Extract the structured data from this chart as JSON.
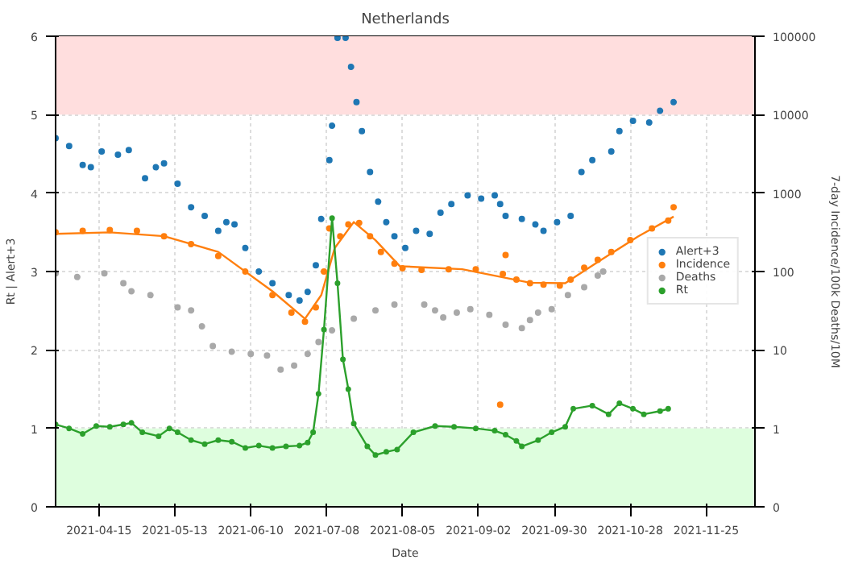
{
  "chart_data": {
    "type": "scatter",
    "title": "Netherlands",
    "xlabel": "Date",
    "ylabel": "Rt | Alert+3",
    "y2label": "7-day Incidence/100k Deaths/10M",
    "xlim": [
      "2021-03-30",
      "2021-12-13"
    ],
    "xticks": [
      "2021-04-15",
      "2021-05-13",
      "2021-06-10",
      "2021-07-08",
      "2021-08-05",
      "2021-09-02",
      "2021-09-30",
      "2021-10-28",
      "2021-11-25"
    ],
    "ylim": [
      0,
      6
    ],
    "yticks": [
      0,
      1,
      2,
      3,
      4,
      5,
      6
    ],
    "y2lim": [
      0,
      100000
    ],
    "y2ticks": [
      0,
      1,
      10,
      100,
      1000,
      10000,
      100000
    ],
    "log": "y2",
    "grid": true,
    "legend": "right",
    "marker": "circle",
    "bands": [
      {
        "axis": "y",
        "from": 5,
        "to": 6,
        "color": "#ffdede"
      },
      {
        "axis": "y",
        "from": 0,
        "to": 1,
        "color": "#defede"
      }
    ],
    "series": [
      {
        "name": "Alert+3",
        "color": "#1f77b4",
        "x": [
          "2021-03-30",
          "2021-04-04",
          "2021-04-09",
          "2021-04-12",
          "2021-04-16",
          "2021-04-22",
          "2021-04-26",
          "2021-05-02",
          "2021-05-06",
          "2021-05-09",
          "2021-05-14",
          "2021-05-19",
          "2021-05-24",
          "2021-05-29",
          "2021-06-01",
          "2021-06-04",
          "2021-06-08",
          "2021-06-13",
          "2021-06-18",
          "2021-06-24",
          "2021-06-28",
          "2021-07-01",
          "2021-07-04",
          "2021-07-06",
          "2021-07-09",
          "2021-07-10",
          "2021-07-12",
          "2021-07-15",
          "2021-07-17",
          "2021-07-19",
          "2021-07-21",
          "2021-07-24",
          "2021-07-27",
          "2021-07-30",
          "2021-08-02",
          "2021-08-06",
          "2021-08-10",
          "2021-08-15",
          "2021-08-19",
          "2021-08-23",
          "2021-08-29",
          "2021-09-03",
          "2021-09-08",
          "2021-09-10",
          "2021-09-12",
          "2021-09-18",
          "2021-09-23",
          "2021-09-26",
          "2021-10-01",
          "2021-10-06",
          "2021-10-10",
          "2021-10-14",
          "2021-10-21",
          "2021-10-24",
          "2021-10-29",
          "2021-11-04",
          "2021-11-08",
          "2021-11-13"
        ],
        "values": [
          4.7,
          4.6,
          4.36,
          4.33,
          4.53,
          4.49,
          4.55,
          4.19,
          4.33,
          4.38,
          4.12,
          3.82,
          3.71,
          3.52,
          3.63,
          3.6,
          3.3,
          3.0,
          2.85,
          2.7,
          2.63,
          2.74,
          3.08,
          3.67,
          4.42,
          4.86,
          5.98,
          5.98,
          5.61,
          5.16,
          4.79,
          4.27,
          3.89,
          3.63,
          3.45,
          3.3,
          3.52,
          3.48,
          3.75,
          3.86,
          3.97,
          3.93,
          3.97,
          3.86,
          3.71,
          3.67,
          3.6,
          3.52,
          3.63,
          3.71,
          4.27,
          4.42,
          4.53,
          4.79,
          4.92,
          4.9,
          5.05,
          5.16
        ]
      },
      {
        "name": "Incidence",
        "axis": "y2",
        "color": "#ff7f0e",
        "x": [
          "2021-03-30",
          "2021-04-09",
          "2021-04-19",
          "2021-04-29",
          "2021-05-09",
          "2021-05-19",
          "2021-05-29",
          "2021-06-08",
          "2021-06-18",
          "2021-06-25",
          "2021-06-30",
          "2021-07-04",
          "2021-07-07",
          "2021-07-09",
          "2021-07-13",
          "2021-07-16",
          "2021-07-20",
          "2021-07-24",
          "2021-07-28",
          "2021-08-02",
          "2021-08-05",
          "2021-08-12",
          "2021-08-22",
          "2021-09-01",
          "2021-09-10",
          "2021-09-11",
          "2021-09-12",
          "2021-09-16",
          "2021-09-21",
          "2021-09-26",
          "2021-10-02",
          "2021-10-06",
          "2021-10-11",
          "2021-10-16",
          "2021-10-21",
          "2021-10-28",
          "2021-11-05",
          "2021-11-11",
          "2021-11-13"
        ],
        "values": [
          316,
          331,
          339,
          331,
          282,
          224,
          158,
          100,
          50,
          30,
          23,
          35,
          100,
          355,
          282,
          398,
          417,
          282,
          178,
          126,
          110,
          105,
          107,
          107,
          2.0,
          93,
          162,
          79,
          71,
          68,
          66,
          79,
          112,
          141,
          178,
          251,
          355,
          447,
          661
        ]
      },
      {
        "type": "line",
        "axis": "y2",
        "color": "#ff7f0e",
        "marker": "none",
        "x": [
          "2021-03-30",
          "2021-04-19",
          "2021-05-09",
          "2021-05-29",
          "2021-06-18",
          "2021-06-30",
          "2021-07-06",
          "2021-07-11",
          "2021-07-18",
          "2021-07-26",
          "2021-08-04",
          "2021-08-27",
          "2021-09-21",
          "2021-10-04",
          "2021-10-16",
          "2021-10-31",
          "2021-11-13"
        ],
        "values": [
          302,
          316,
          282,
          178,
          56,
          25,
          50,
          200,
          427,
          251,
          117,
          107,
          72,
          71,
          132,
          282,
          501
        ]
      },
      {
        "name": "Deaths",
        "axis": "y2",
        "color": "#a9a9a9",
        "x": [
          "2021-03-30",
          "2021-04-07",
          "2021-04-17",
          "2021-04-24",
          "2021-04-27",
          "2021-05-04",
          "2021-05-14",
          "2021-05-19",
          "2021-05-23",
          "2021-05-27",
          "2021-06-03",
          "2021-06-10",
          "2021-06-16",
          "2021-06-21",
          "2021-06-26",
          "2021-07-01",
          "2021-07-05",
          "2021-07-10",
          "2021-07-18",
          "2021-07-26",
          "2021-08-02",
          "2021-08-13",
          "2021-08-17",
          "2021-08-20",
          "2021-08-25",
          "2021-08-30",
          "2021-09-06",
          "2021-09-12",
          "2021-09-18",
          "2021-09-21",
          "2021-09-24",
          "2021-09-29",
          "2021-10-05",
          "2021-10-11",
          "2021-10-16",
          "2021-10-18"
        ],
        "values": [
          95,
          85,
          95,
          71,
          56,
          50,
          35,
          32,
          20,
          11.2,
          9.5,
          8.9,
          8.5,
          5.6,
          6.3,
          8.9,
          12.6,
          17.8,
          25,
          32,
          38,
          38,
          32,
          26,
          30,
          33,
          28,
          21,
          19,
          24,
          30,
          33,
          50,
          63,
          89,
          100
        ]
      },
      {
        "name": "Rt",
        "type": "line",
        "color": "#2ca02c",
        "x": [
          "2021-03-30",
          "2021-04-04",
          "2021-04-09",
          "2021-04-14",
          "2021-04-19",
          "2021-04-24",
          "2021-04-27",
          "2021-05-01",
          "2021-05-07",
          "2021-05-11",
          "2021-05-14",
          "2021-05-19",
          "2021-05-24",
          "2021-05-29",
          "2021-06-03",
          "2021-06-08",
          "2021-06-13",
          "2021-06-18",
          "2021-06-23",
          "2021-06-28",
          "2021-07-01",
          "2021-07-03",
          "2021-07-05",
          "2021-07-07",
          "2021-07-10",
          "2021-07-12",
          "2021-07-14",
          "2021-07-16",
          "2021-07-18",
          "2021-07-23",
          "2021-07-26",
          "2021-07-30",
          "2021-08-03",
          "2021-08-09",
          "2021-08-17",
          "2021-08-24",
          "2021-09-01",
          "2021-09-08",
          "2021-09-12",
          "2021-09-16",
          "2021-09-18",
          "2021-09-24",
          "2021-09-29",
          "2021-10-04",
          "2021-10-07",
          "2021-10-14",
          "2021-10-20",
          "2021-10-24",
          "2021-10-29",
          "2021-11-02",
          "2021-11-08",
          "2021-11-11"
        ],
        "values": [
          1.05,
          1.0,
          0.93,
          1.03,
          1.02,
          1.05,
          1.07,
          0.95,
          0.9,
          1.0,
          0.95,
          0.85,
          0.8,
          0.85,
          0.83,
          0.75,
          0.78,
          0.75,
          0.77,
          0.78,
          0.82,
          0.95,
          1.44,
          2.26,
          3.68,
          2.85,
          1.88,
          1.5,
          1.06,
          0.77,
          0.66,
          0.7,
          0.73,
          0.95,
          1.03,
          1.02,
          1.0,
          0.97,
          0.92,
          0.84,
          0.77,
          0.85,
          0.95,
          1.02,
          1.25,
          1.29,
          1.18,
          1.32,
          1.25,
          1.18,
          1.22,
          1.25
        ]
      }
    ]
  }
}
